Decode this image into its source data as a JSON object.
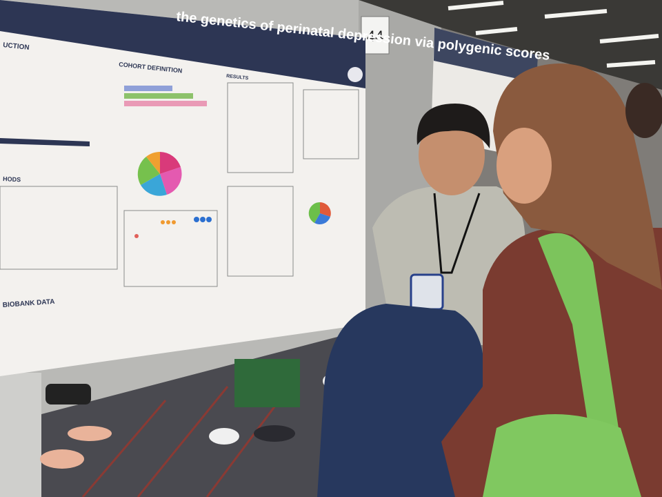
{
  "poster": {
    "board_number": "44",
    "title": "the genetics of perinatal depression via polygenic scores",
    "sections": [
      "UCTION",
      "COHORT DEFINITION",
      "RESULTS",
      "HODS",
      "BIOBANK DATA"
    ]
  }
}
